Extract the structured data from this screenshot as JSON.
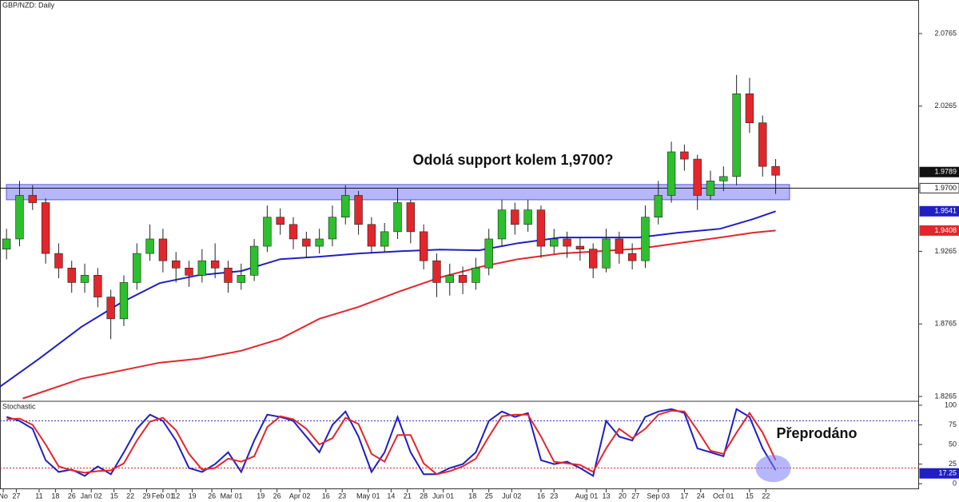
{
  "chart_data": [
    {
      "type": "candlestick",
      "title": "GBP/NZD: Daily",
      "x": [
        2,
        6,
        10,
        14,
        18,
        22,
        26,
        30,
        34,
        38,
        42,
        46,
        50,
        54,
        58,
        62,
        66,
        70,
        74,
        78,
        82,
        86,
        90,
        94,
        98,
        102,
        106,
        110,
        114,
        118,
        122,
        126,
        130,
        134,
        138,
        142,
        146,
        150,
        154,
        158,
        162,
        166,
        170,
        174,
        178,
        182,
        186,
        190,
        194,
        198,
        202,
        206,
        210,
        214,
        218,
        222,
        226,
        230,
        234,
        238
      ],
      "open": [
        1.928,
        1.935,
        1.965,
        1.96,
        1.925,
        1.915,
        1.905,
        1.91,
        1.895,
        1.88,
        1.905,
        1.925,
        1.935,
        1.92,
        1.915,
        1.91,
        1.92,
        1.915,
        1.905,
        1.91,
        1.93,
        1.95,
        1.945,
        1.935,
        1.93,
        1.935,
        1.95,
        1.965,
        1.945,
        1.93,
        1.94,
        1.96,
        1.94,
        1.92,
        1.905,
        1.91,
        1.905,
        1.915,
        1.935,
        1.955,
        1.945,
        1.955,
        1.93,
        1.935,
        1.93,
        1.928,
        1.915,
        1.935,
        1.925,
        1.92,
        1.95,
        1.965,
        1.995,
        1.99,
        1.965,
        1.975,
        1.978,
        2.035,
        2.015,
        1.985
      ],
      "high": [
        1.942,
        1.975,
        1.972,
        1.963,
        1.932,
        1.92,
        1.918,
        1.915,
        1.9,
        1.91,
        1.932,
        1.945,
        1.942,
        1.926,
        1.92,
        1.928,
        1.932,
        1.92,
        1.918,
        1.935,
        1.958,
        1.956,
        1.95,
        1.94,
        1.942,
        1.958,
        1.972,
        1.968,
        1.95,
        1.946,
        1.97,
        1.962,
        1.945,
        1.925,
        1.918,
        1.916,
        1.922,
        1.942,
        1.962,
        1.96,
        1.962,
        1.958,
        1.942,
        1.94,
        1.936,
        1.932,
        1.942,
        1.94,
        1.932,
        1.958,
        1.975,
        2.002,
        2.0,
        1.993,
        1.982,
        1.985,
        2.048,
        2.046,
        2.02,
        1.99
      ],
      "low": [
        1.921,
        1.93,
        1.955,
        1.918,
        1.908,
        1.898,
        1.898,
        1.888,
        1.866,
        1.875,
        1.9,
        1.92,
        1.912,
        1.905,
        1.902,
        1.905,
        1.908,
        1.898,
        1.9,
        1.906,
        1.926,
        1.938,
        1.928,
        1.922,
        1.925,
        1.93,
        1.945,
        1.938,
        1.925,
        1.926,
        1.935,
        1.932,
        1.914,
        1.895,
        1.896,
        1.897,
        1.9,
        1.91,
        1.93,
        1.938,
        1.94,
        1.922,
        1.925,
        1.922,
        1.92,
        1.908,
        1.912,
        1.918,
        1.914,
        1.915,
        1.945,
        1.96,
        1.982,
        1.955,
        1.962,
        1.968,
        1.972,
        2.008,
        1.978,
        1.966
      ],
      "close": [
        1.935,
        1.965,
        1.96,
        1.925,
        1.915,
        1.905,
        1.91,
        1.895,
        1.88,
        1.905,
        1.925,
        1.935,
        1.92,
        1.915,
        1.91,
        1.92,
        1.915,
        1.905,
        1.91,
        1.93,
        1.95,
        1.945,
        1.935,
        1.93,
        1.935,
        1.95,
        1.965,
        1.945,
        1.93,
        1.94,
        1.96,
        1.94,
        1.92,
        1.905,
        1.91,
        1.905,
        1.915,
        1.935,
        1.955,
        1.945,
        1.955,
        1.93,
        1.935,
        1.93,
        1.928,
        1.915,
        1.935,
        1.925,
        1.92,
        1.95,
        1.965,
        1.995,
        1.99,
        1.965,
        1.975,
        1.978,
        2.035,
        2.015,
        1.985,
        1.9789
      ],
      "up_color": "#2dbf2d",
      "down_color": "#e3262b",
      "overlays": [
        {
          "color": "#1f1fc4",
          "x": [
            0,
            12,
            25,
            37,
            49,
            61,
            74,
            86,
            98,
            110,
            123,
            135,
            147,
            159,
            172,
            184,
            196,
            208,
            221,
            231,
            238
          ],
          "values": [
            1.8333,
            1.8525,
            1.8745,
            1.8909,
            1.9046,
            1.9101,
            1.9129,
            1.9211,
            1.9228,
            1.925,
            1.9266,
            1.9277,
            1.9272,
            1.9321,
            1.936,
            1.936,
            1.936,
            1.9393,
            1.942,
            1.9486,
            1.9541
          ]
        },
        {
          "color": "#e3262b",
          "x": [
            7,
            25,
            37,
            49,
            61,
            74,
            86,
            98,
            110,
            123,
            135,
            147,
            159,
            172,
            184,
            196,
            208,
            221,
            231,
            238
          ],
          "values": [
            1.8251,
            1.8388,
            1.8443,
            1.8498,
            1.8525,
            1.858,
            1.8662,
            1.88,
            1.8882,
            1.8992,
            1.9085,
            1.9156,
            1.9211,
            1.925,
            1.9266,
            1.9283,
            1.9321,
            1.936,
            1.9393,
            1.9408
          ]
        }
      ],
      "zone": [
        1.962,
        1.9725
      ],
      "zone_color": "#7a7cf5",
      "level": {
        "value": 1.97,
        "label": "1.9700"
      },
      "annotation": "Odolá support kolem 1,9700?",
      "xlim": [
        0,
        282
      ],
      "ylim": [
        1.8232,
        2.0996
      ],
      "yticks": [
        2.0765,
        2.0265,
        1.9265,
        1.8765,
        1.8265
      ],
      "xticks": [
        {
          "value": 1,
          "label": "No"
        },
        {
          "value": 5,
          "label": "27"
        },
        {
          "value": 12,
          "label": "11"
        },
        {
          "value": 17,
          "label": "18"
        },
        {
          "value": 22,
          "label": "26"
        },
        {
          "value": 28,
          "label": "Jan 02"
        },
        {
          "value": 35,
          "label": "15"
        },
        {
          "value": 40,
          "label": "22"
        },
        {
          "value": 45,
          "label": "29"
        },
        {
          "value": 50,
          "label": "Feb 01"
        },
        {
          "value": 54,
          "label": "12"
        },
        {
          "value": 59,
          "label": "19"
        },
        {
          "value": 65,
          "label": "26"
        },
        {
          "value": 71,
          "label": "Mar 01"
        },
        {
          "value": 80,
          "label": "19"
        },
        {
          "value": 85,
          "label": "26"
        },
        {
          "value": 92,
          "label": "Apr 02"
        },
        {
          "value": 100,
          "label": "16"
        },
        {
          "value": 105,
          "label": "23"
        },
        {
          "value": 113,
          "label": "May 01"
        },
        {
          "value": 120,
          "label": "14"
        },
        {
          "value": 125,
          "label": "21"
        },
        {
          "value": 130,
          "label": "28"
        },
        {
          "value": 136,
          "label": "Jun 01"
        },
        {
          "value": 145,
          "label": "18"
        },
        {
          "value": 150,
          "label": "25"
        },
        {
          "value": 157,
          "label": "Jul 02"
        },
        {
          "value": 166,
          "label": "16"
        },
        {
          "value": 170,
          "label": "23"
        },
        {
          "value": 180,
          "label": "Aug 01"
        },
        {
          "value": 186,
          "label": "13"
        },
        {
          "value": 191,
          "label": "20"
        },
        {
          "value": 195,
          "label": "27"
        },
        {
          "value": 202,
          "label": "Sep 03"
        },
        {
          "value": 210,
          "label": "17"
        },
        {
          "value": 215,
          "label": "24"
        },
        {
          "value": 222,
          "label": "Oct 01"
        },
        {
          "value": 230,
          "label": "15"
        },
        {
          "value": 235,
          "label": "22"
        }
      ]
    },
    {
      "type": "stochastic",
      "title": "Stochastic",
      "x": [
        2,
        6,
        10,
        14,
        18,
        22,
        26,
        30,
        34,
        38,
        42,
        46,
        50,
        54,
        58,
        62,
        66,
        70,
        74,
        78,
        82,
        86,
        90,
        94,
        98,
        102,
        106,
        110,
        114,
        118,
        122,
        126,
        130,
        134,
        138,
        142,
        146,
        150,
        154,
        158,
        162,
        166,
        170,
        174,
        178,
        182,
        186,
        190,
        194,
        198,
        202,
        206,
        210,
        214,
        218,
        222,
        226,
        230,
        234,
        238
      ],
      "series": [
        {
          "color": "#1f1fc4",
          "values": [
            85,
            80,
            70,
            30,
            15,
            18,
            10,
            22,
            12,
            40,
            70,
            88,
            80,
            55,
            20,
            15,
            25,
            40,
            15,
            55,
            88,
            85,
            80,
            60,
            40,
            75,
            92,
            60,
            15,
            40,
            85,
            40,
            12,
            12,
            20,
            25,
            40,
            80,
            92,
            85,
            90,
            30,
            25,
            28,
            20,
            10,
            80,
            60,
            55,
            85,
            92,
            95,
            90,
            45,
            40,
            35,
            95,
            85,
            45,
            17.25
          ]
        },
        {
          "color": "#e3262b",
          "values": [
            82,
            83,
            75,
            50,
            22,
            17,
            14,
            16,
            17,
            26,
            55,
            79,
            84,
            68,
            38,
            18,
            20,
            32,
            28,
            35,
            72,
            86,
            82,
            70,
            50,
            58,
            84,
            76,
            38,
            28,
            62,
            62,
            26,
            12,
            16,
            22,
            32,
            60,
            86,
            88,
            88,
            60,
            28,
            26,
            24,
            15,
            45,
            70,
            58,
            70,
            88,
            93,
            92,
            68,
            42,
            38,
            65,
            90,
            65,
            30
          ]
        }
      ],
      "levels": [
        {
          "value": 80,
          "color": "#3333cc"
        },
        {
          "value": 20,
          "color": "#e3262b"
        }
      ],
      "annotation": "Přeprodáno",
      "xlim": [
        0,
        282
      ],
      "ylim": [
        -7,
        105
      ],
      "yticks": [
        100,
        75,
        50,
        25,
        0
      ]
    }
  ]
}
